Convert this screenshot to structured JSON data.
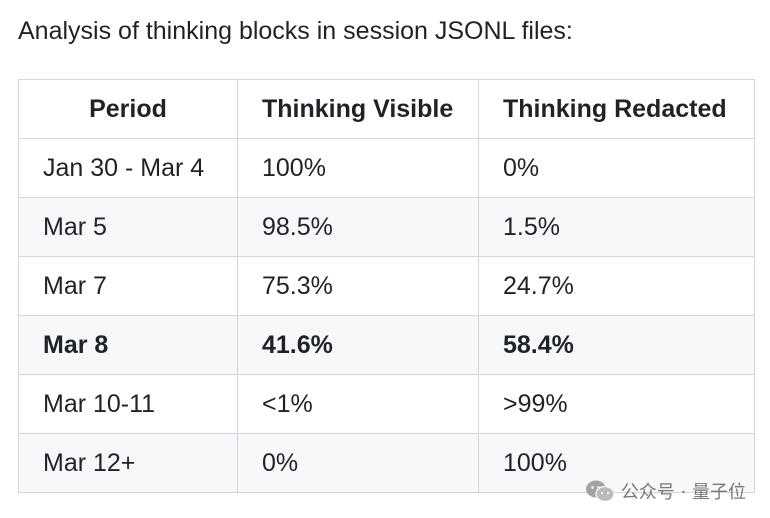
{
  "intro": "Analysis of thinking blocks in session JSONL files:",
  "table": {
    "headers": [
      "Period",
      "Thinking Visible",
      "Thinking Redacted"
    ],
    "rows": [
      [
        "Jan 30 - Mar 4",
        "100%",
        "0%"
      ],
      [
        "Mar 5",
        "98.5%",
        "1.5%"
      ],
      [
        "Mar 7",
        "75.3%",
        "24.7%"
      ],
      [
        "Mar 8",
        "41.6%",
        "58.4%"
      ],
      [
        "Mar 10-11",
        "<1%",
        ">99%"
      ],
      [
        "Mar 12+",
        "0%",
        "100%"
      ]
    ]
  },
  "watermark": {
    "text": "公众号 · 量子位",
    "icon": "wechat-logo-icon"
  }
}
